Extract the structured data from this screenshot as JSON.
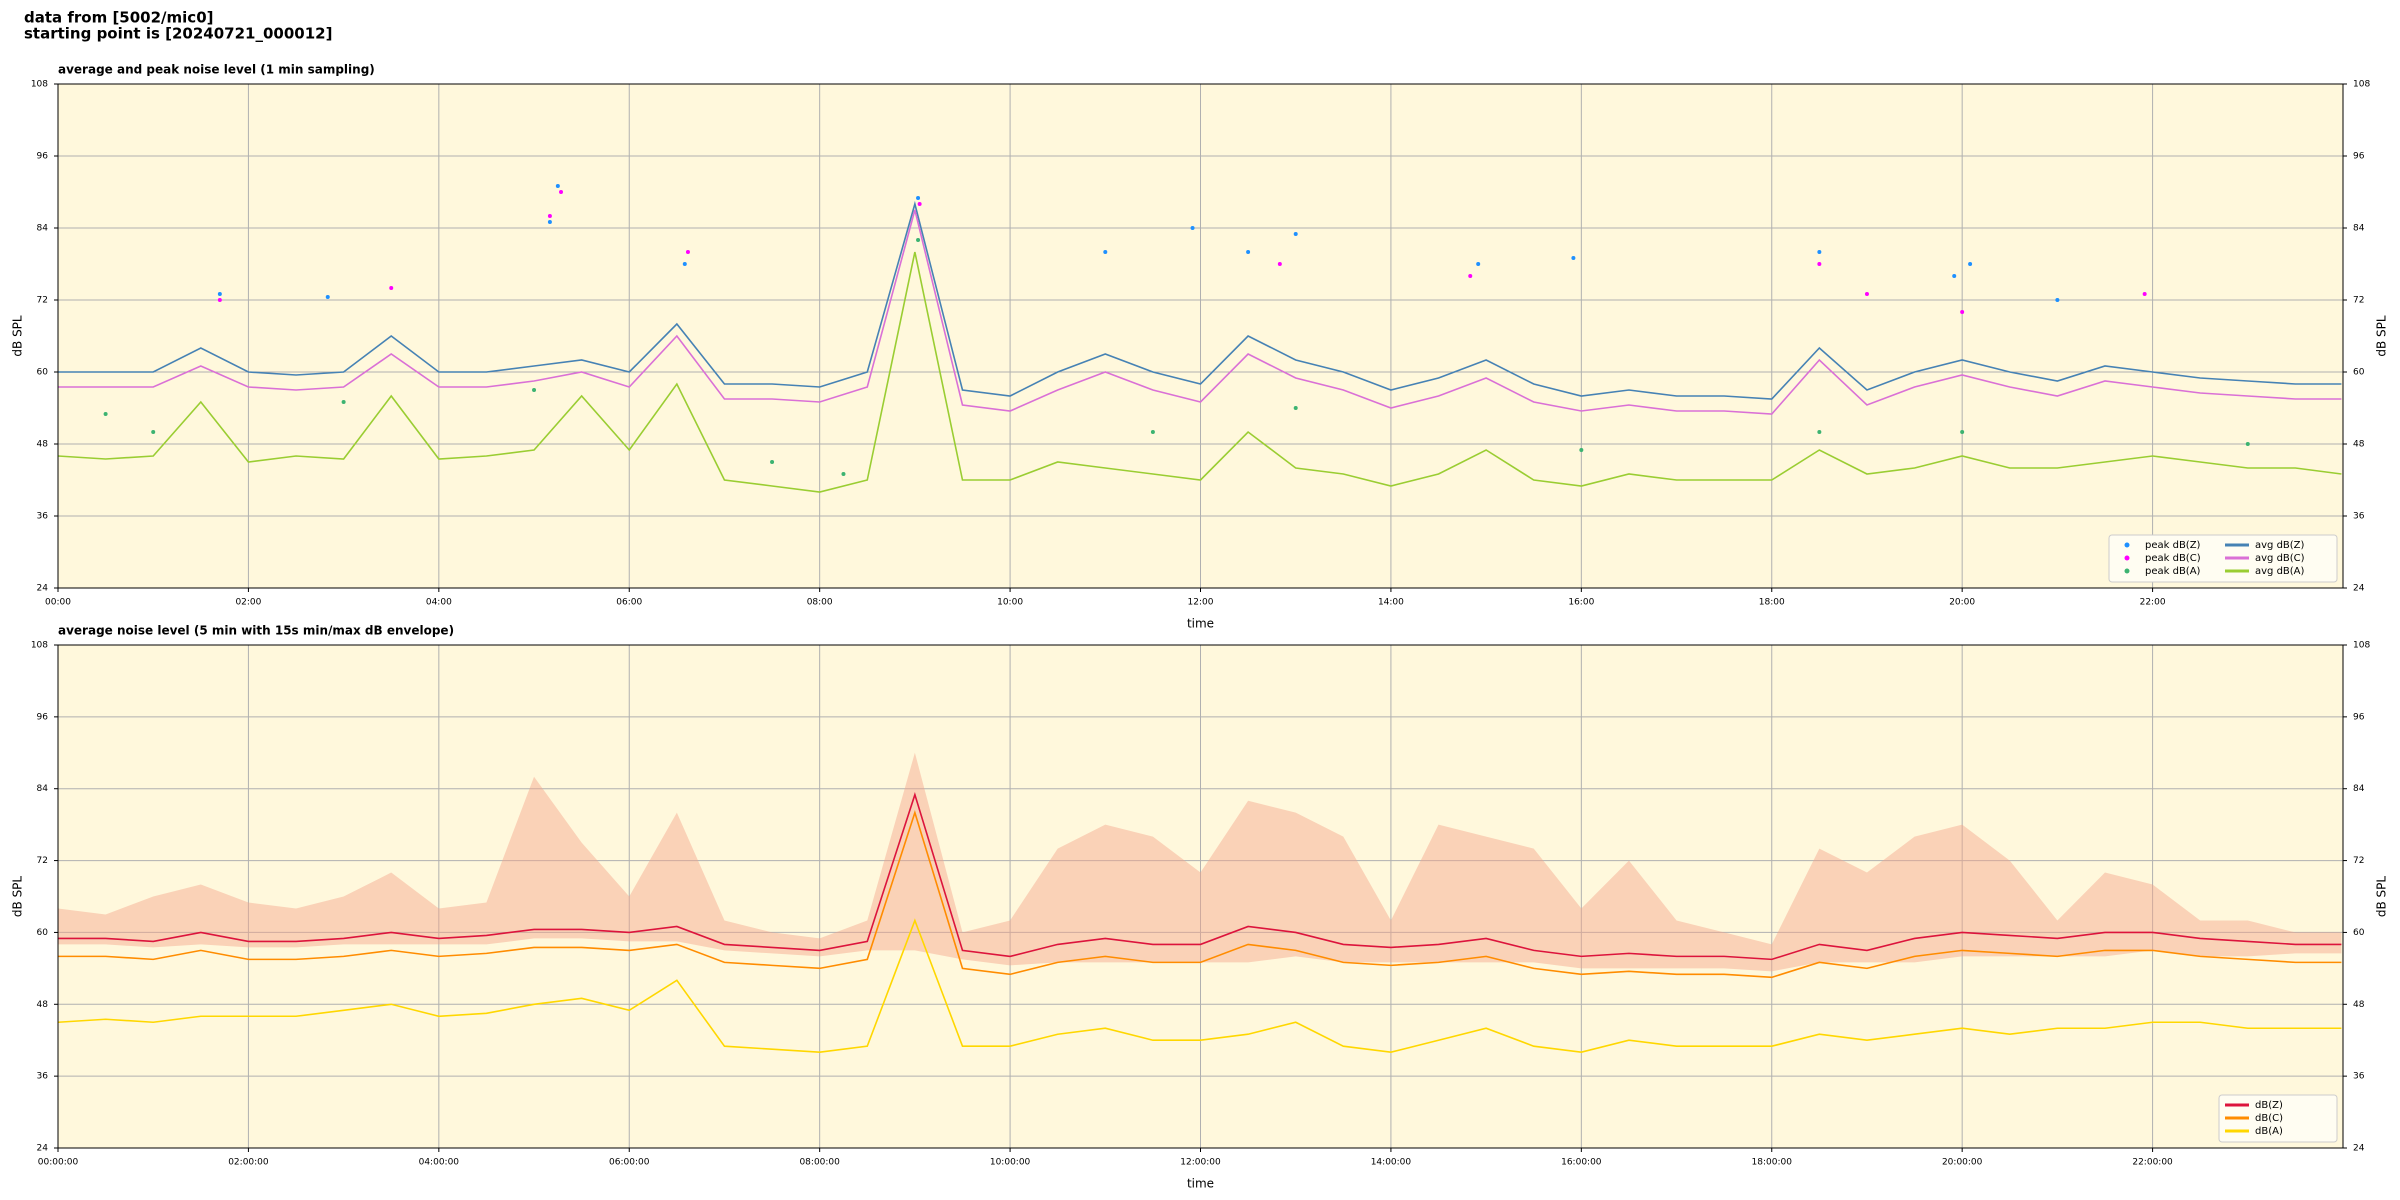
{
  "header": {
    "source": "data from [5002/mic0]",
    "start": "starting point is [20240721_000012]"
  },
  "chart_data": [
    {
      "type": "line",
      "title": "average and peak noise level (1 min sampling)",
      "xlabel": "time",
      "ylabel": "dB SPL",
      "xlim": [
        "00:00",
        "24:00"
      ],
      "xticks": [
        "00:00",
        "02:00",
        "04:00",
        "06:00",
        "08:00",
        "10:00",
        "12:00",
        "14:00",
        "16:00",
        "18:00",
        "20:00",
        "22:00"
      ],
      "ylim": [
        24,
        108
      ],
      "yticks": [
        24,
        36,
        48,
        60,
        72,
        84,
        96,
        108
      ],
      "grid": true,
      "legend": "lower right",
      "legend_columns": 2,
      "background": "#fff8dc",
      "x": [
        "00:00",
        "00:30",
        "01:00",
        "01:30",
        "02:00",
        "02:30",
        "03:00",
        "03:30",
        "04:00",
        "04:30",
        "05:00",
        "05:30",
        "06:00",
        "06:30",
        "07:00",
        "07:30",
        "08:00",
        "08:30",
        "09:00",
        "09:30",
        "10:00",
        "10:30",
        "11:00",
        "11:30",
        "12:00",
        "12:30",
        "13:00",
        "13:30",
        "14:00",
        "14:30",
        "15:00",
        "15:30",
        "16:00",
        "16:30",
        "17:00",
        "17:30",
        "18:00",
        "18:30",
        "19:00",
        "19:30",
        "20:00",
        "20:30",
        "21:00",
        "21:30",
        "22:00",
        "22:30",
        "23:00",
        "23:30",
        "23:59"
      ],
      "series": [
        {
          "name": "peak dB(Z)",
          "type": "scatter",
          "color": "#1e90ff",
          "x": [
            "01:42",
            "02:50",
            "05:10",
            "05:15",
            "06:35",
            "09:02",
            "11:00",
            "11:55",
            "12:30",
            "13:00",
            "14:55",
            "15:55",
            "18:30",
            "19:55",
            "20:05",
            "21:00"
          ],
          "values": [
            73,
            72.5,
            85,
            91,
            78,
            89,
            80,
            84,
            80,
            83,
            78,
            79,
            80,
            76,
            78,
            72
          ]
        },
        {
          "name": "peak dB(C)",
          "type": "scatter",
          "color": "#ff00ff",
          "x": [
            "01:42",
            "03:30",
            "05:10",
            "05:17",
            "06:37",
            "09:03",
            "12:50",
            "14:50",
            "18:30",
            "19:00",
            "20:00",
            "21:55"
          ],
          "values": [
            72,
            74,
            86,
            90,
            80,
            88,
            78,
            76,
            78,
            73,
            70,
            73
          ]
        },
        {
          "name": "peak dB(A)",
          "type": "scatter",
          "color": "#3cb371",
          "x": [
            "00:30",
            "01:00",
            "03:00",
            "05:00",
            "07:30",
            "08:15",
            "09:02",
            "11:30",
            "13:00",
            "16:00",
            "18:30",
            "20:00",
            "23:00"
          ],
          "values": [
            53,
            50,
            55,
            57,
            45,
            43,
            82,
            50,
            54,
            47,
            50,
            50,
            48
          ]
        },
        {
          "name": "avg dB(Z)",
          "type": "line",
          "color": "#4682b4",
          "values": [
            60,
            60,
            60,
            64,
            60,
            59.5,
            60,
            66,
            60,
            60,
            61,
            62,
            60,
            68,
            58,
            58,
            57.5,
            60,
            88,
            57,
            56,
            60,
            63,
            60,
            58,
            66,
            62,
            60,
            57,
            59,
            62,
            58,
            56,
            57,
            56,
            56,
            55.5,
            64,
            57,
            60,
            62,
            60,
            58.5,
            61,
            60,
            59,
            58.5,
            58,
            58
          ]
        },
        {
          "name": "avg dB(C)",
          "type": "line",
          "color": "#da70d6",
          "values": [
            57.5,
            57.5,
            57.5,
            61,
            57.5,
            57,
            57.5,
            63,
            57.5,
            57.5,
            58.5,
            60,
            57.5,
            66,
            55.5,
            55.5,
            55,
            57.5,
            87,
            54.5,
            53.5,
            57,
            60,
            57,
            55,
            63,
            59,
            57,
            54,
            56,
            59,
            55,
            53.5,
            54.5,
            53.5,
            53.5,
            53,
            62,
            54.5,
            57.5,
            59.5,
            57.5,
            56,
            58.5,
            57.5,
            56.5,
            56,
            55.5,
            55.5
          ]
        },
        {
          "name": "avg dB(A)",
          "type": "line",
          "color": "#9acd32",
          "values": [
            46,
            45.5,
            46,
            55,
            45,
            46,
            45.5,
            56,
            45.5,
            46,
            47,
            56,
            47,
            58,
            42,
            41,
            40,
            42,
            80,
            42,
            42,
            45,
            44,
            43,
            42,
            50,
            44,
            43,
            41,
            43,
            47,
            42,
            41,
            43,
            42,
            42,
            42,
            47,
            43,
            44,
            46,
            44,
            44,
            45,
            46,
            45,
            44,
            44,
            43
          ]
        }
      ]
    },
    {
      "type": "line",
      "title": "average noise level (5 min with 15s min/max dB envelope)",
      "xlabel": "time",
      "ylabel": "dB SPL",
      "xlim": [
        "00:00:00",
        "24:00:00"
      ],
      "xticks": [
        "00:00:00",
        "02:00:00",
        "04:00:00",
        "06:00:00",
        "08:00:00",
        "10:00:00",
        "12:00:00",
        "14:00:00",
        "16:00:00",
        "18:00:00",
        "20:00:00",
        "22:00:00"
      ],
      "ylim": [
        24,
        108
      ],
      "yticks": [
        24,
        36,
        48,
        60,
        72,
        84,
        96,
        108
      ],
      "grid": true,
      "legend": "lower right",
      "legend_columns": 1,
      "background": "#fff8dc",
      "x": [
        "00:00:00",
        "00:30:00",
        "01:00:00",
        "01:30:00",
        "02:00:00",
        "02:30:00",
        "03:00:00",
        "03:30:00",
        "04:00:00",
        "04:30:00",
        "05:00:00",
        "05:30:00",
        "06:00:00",
        "06:30:00",
        "07:00:00",
        "07:30:00",
        "08:00:00",
        "08:30:00",
        "09:00:00",
        "09:30:00",
        "10:00:00",
        "10:30:00",
        "11:00:00",
        "11:30:00",
        "12:00:00",
        "12:30:00",
        "13:00:00",
        "13:30:00",
        "14:00:00",
        "14:30:00",
        "15:00:00",
        "15:30:00",
        "16:00:00",
        "16:30:00",
        "17:00:00",
        "17:30:00",
        "18:00:00",
        "18:30:00",
        "19:00:00",
        "19:30:00",
        "20:00:00",
        "20:30:00",
        "21:00:00",
        "21:30:00",
        "22:00:00",
        "22:30:00",
        "23:00:00",
        "23:30:00",
        "23:59:00"
      ],
      "envelope_color": "#f4a58a",
      "envelope_high": [
        64,
        63,
        66,
        68,
        65,
        64,
        66,
        70,
        64,
        65,
        86,
        75,
        66,
        80,
        62,
        60,
        59,
        62,
        90,
        60,
        62,
        74,
        78,
        76,
        70,
        82,
        80,
        76,
        62,
        78,
        76,
        74,
        64,
        72,
        62,
        60,
        58,
        74,
        70,
        76,
        78,
        72,
        62,
        70,
        68,
        62,
        62,
        60,
        60
      ],
      "envelope_low": [
        58,
        58,
        57.5,
        58,
        57.5,
        57.5,
        58,
        58,
        58,
        58,
        59,
        59,
        58.5,
        58.5,
        57,
        56.5,
        56,
        57,
        57,
        55.5,
        54.5,
        55,
        55,
        55,
        55,
        55,
        56,
        55,
        55,
        55,
        55,
        55,
        54,
        54,
        54,
        54,
        53.5,
        55,
        55,
        55,
        56,
        56,
        56,
        56,
        57,
        56,
        56,
        56.5,
        56.5
      ],
      "series": [
        {
          "name": "dB(Z)",
          "type": "line",
          "color": "#dc143c",
          "values": [
            59,
            59,
            58.5,
            60,
            58.5,
            58.5,
            59,
            60,
            59,
            59.5,
            60.5,
            60.5,
            60,
            61,
            58,
            57.5,
            57,
            58.5,
            83,
            57,
            56,
            58,
            59,
            58,
            58,
            61,
            60,
            58,
            57.5,
            58,
            59,
            57,
            56,
            56.5,
            56,
            56,
            55.5,
            58,
            57,
            59,
            60,
            59.5,
            59,
            60,
            60,
            59,
            58.5,
            58,
            58
          ]
        },
        {
          "name": "dB(C)",
          "type": "line",
          "color": "#ff8c00",
          "values": [
            56,
            56,
            55.5,
            57,
            55.5,
            55.5,
            56,
            57,
            56,
            56.5,
            57.5,
            57.5,
            57,
            58,
            55,
            54.5,
            54,
            55.5,
            80,
            54,
            53,
            55,
            56,
            55,
            55,
            58,
            57,
            55,
            54.5,
            55,
            56,
            54,
            53,
            53.5,
            53,
            53,
            52.5,
            55,
            54,
            56,
            57,
            56.5,
            56,
            57,
            57,
            56,
            55.5,
            55,
            55
          ]
        },
        {
          "name": "dB(A)",
          "type": "line",
          "color": "#ffd700",
          "values": [
            45,
            45.5,
            45,
            46,
            46,
            46,
            47,
            48,
            46,
            46.5,
            48,
            49,
            47,
            52,
            41,
            40.5,
            40,
            41,
            62,
            41,
            41,
            43,
            44,
            42,
            42,
            43,
            45,
            41,
            40,
            42,
            44,
            41,
            40,
            42,
            41,
            41,
            41,
            43,
            42,
            43,
            44,
            43,
            44,
            44,
            45,
            45,
            44,
            44,
            44
          ]
        }
      ]
    }
  ]
}
